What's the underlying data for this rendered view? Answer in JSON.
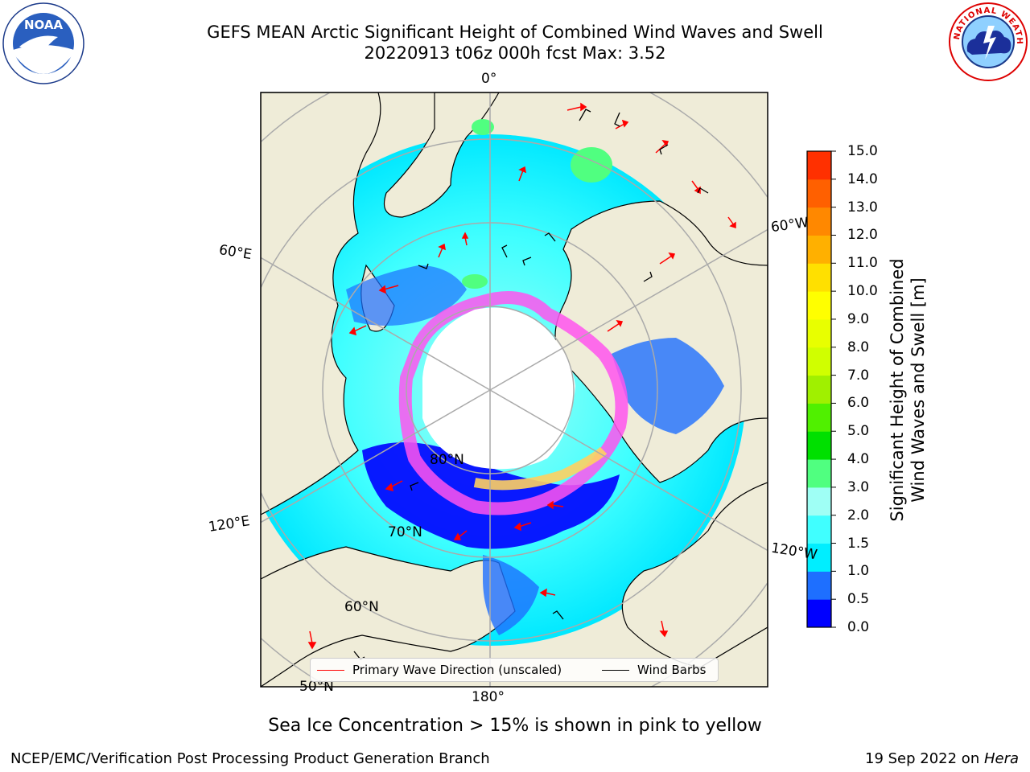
{
  "title_line1": "GEFS MEAN Arctic Significant Height of Combined Wind Waves and Swell",
  "title_line2": "20220913 t06z 000h fcst   Max: 3.52",
  "logos": {
    "left": "noaa-logo",
    "right": "nws-logo",
    "left_text": "NOAA",
    "right_text": "NATIONAL WEATHER SERVICE"
  },
  "longitude_labels": {
    "top": "0°",
    "left_upper": "60°E",
    "left_lower": "120°E",
    "bottom": "180°",
    "right_upper": "60°W",
    "right_lower": "120°W"
  },
  "latitude_labels": [
    "80°N",
    "70°N",
    "60°N",
    "50°N"
  ],
  "legend": {
    "wave": "Primary Wave Direction (unscaled)",
    "barbs": "Wind Barbs"
  },
  "colorbar": {
    "label_line1": "Significant Height of Combined",
    "label_line2": "Wind Waves and Swell [m]",
    "ticks": [
      "15.0",
      "14.0",
      "13.0",
      "12.0",
      "11.0",
      "10.0",
      "9.0",
      "8.0",
      "7.0",
      "6.0",
      "5.0",
      "4.0",
      "3.0",
      "2.0",
      "1.5",
      "1.0",
      "0.5",
      "0.0"
    ],
    "colors": [
      "#0000ff",
      "#1e6fff",
      "#00eeff",
      "#40ffff",
      "#9ffff5",
      "#50ff80",
      "#00e000",
      "#50f000",
      "#a0f000",
      "#d0ff00",
      "#e8ff00",
      "#ffff00",
      "#ffe000",
      "#ffb000",
      "#ff8800",
      "#ff6000",
      "#ff3000",
      "#ff0000"
    ]
  },
  "colors": {
    "land": "#efecd8",
    "ice": "#ff55ee",
    "ocean_mid": "#00e8ff",
    "ocean_low": "#0000ff",
    "arrow": "#ff0000"
  },
  "subtitle": "Sea Ice Concentration > 15% is shown in pink to yellow",
  "footer_left": "NCEP/EMC/Verification Post Processing Product Generation Branch",
  "footer_right_prefix": "19 Sep 2022 on ",
  "footer_right_host": "Hera"
}
